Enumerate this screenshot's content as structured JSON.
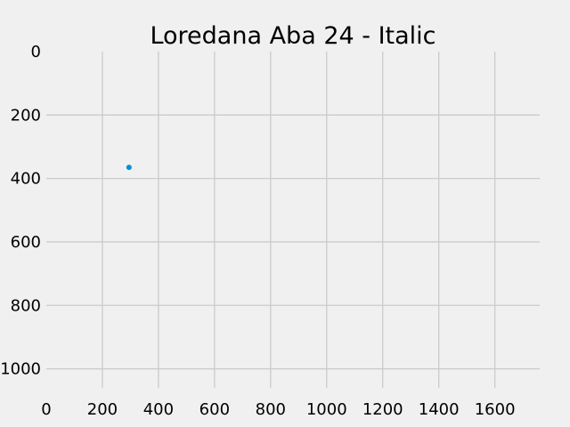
{
  "chart_data": {
    "type": "scatter",
    "title": "Loredana Aba 24 - Italic",
    "xlabel": "",
    "ylabel": "",
    "xlim": [
      0,
      1760
    ],
    "ylim": [
      1060,
      0
    ],
    "y_inverted": true,
    "grid": true,
    "x_ticks": [
      "0",
      "200",
      "400",
      "600",
      "800",
      "1000",
      "1200",
      "1400",
      "1600"
    ],
    "y_ticks": [
      "0",
      "200",
      "400",
      "600",
      "800",
      "1000"
    ],
    "series": [
      {
        "color": "#008fd5",
        "points": [
          {
            "x": 295,
            "y": 365
          }
        ]
      }
    ]
  }
}
